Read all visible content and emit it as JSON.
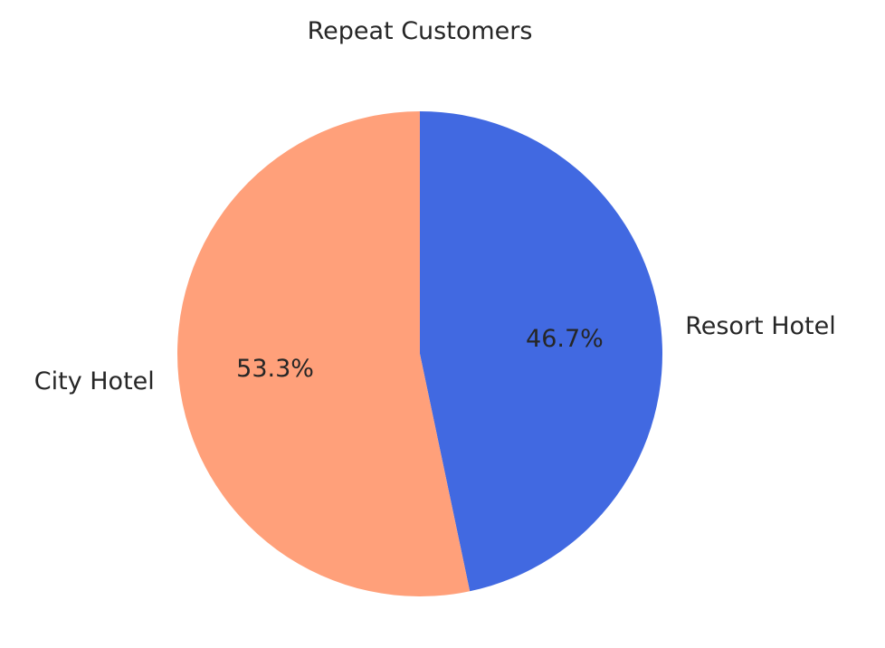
{
  "chart_data": {
    "type": "pie",
    "title": "Repeat Customers",
    "labels": [
      "Resort Hotel",
      "City Hotel"
    ],
    "values": [
      46.7,
      53.3
    ],
    "autopct_labels": [
      "46.7%",
      "53.3%"
    ],
    "colors": [
      "#4169e1",
      "#ffa07a"
    ],
    "start_angle_deg": 90,
    "direction": "clockwise",
    "legend": "none"
  }
}
